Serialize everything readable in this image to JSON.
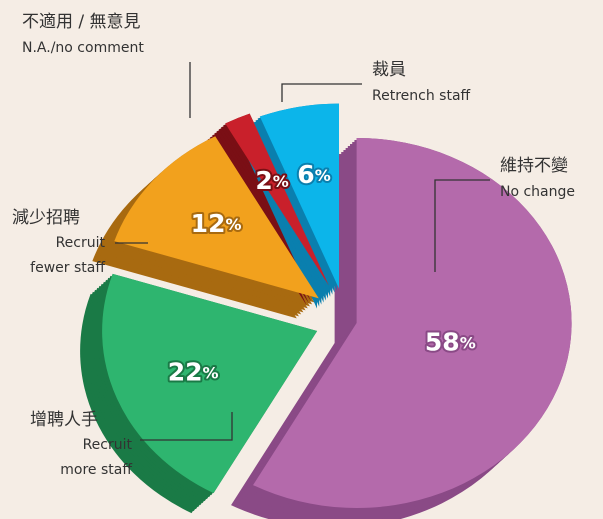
{
  "chart_data": {
    "type": "pie",
    "categories": [
      "維持不變",
      "增聘人手",
      "減少招聘",
      "不適用 / 無意見",
      "裁員"
    ],
    "categories_en": [
      [
        "No change"
      ],
      [
        "Recruit",
        "more staff"
      ],
      [
        "Recruit",
        "fewer staff"
      ],
      [
        "N.A./no comment"
      ],
      [
        "Retrench staff"
      ]
    ],
    "values": [
      58,
      22,
      12,
      2,
      6
    ],
    "value_labels": [
      "58%",
      "22%",
      "12%",
      "2%",
      "6%"
    ],
    "colors": [
      "#b46aab",
      "#2eb56f",
      "#f2a11d",
      "#c9202b",
      "#0cb5ea"
    ],
    "side_colors": [
      "#8a4a86",
      "#1a7a46",
      "#a86a10",
      "#7a0f15",
      "#0a7fae"
    ]
  }
}
